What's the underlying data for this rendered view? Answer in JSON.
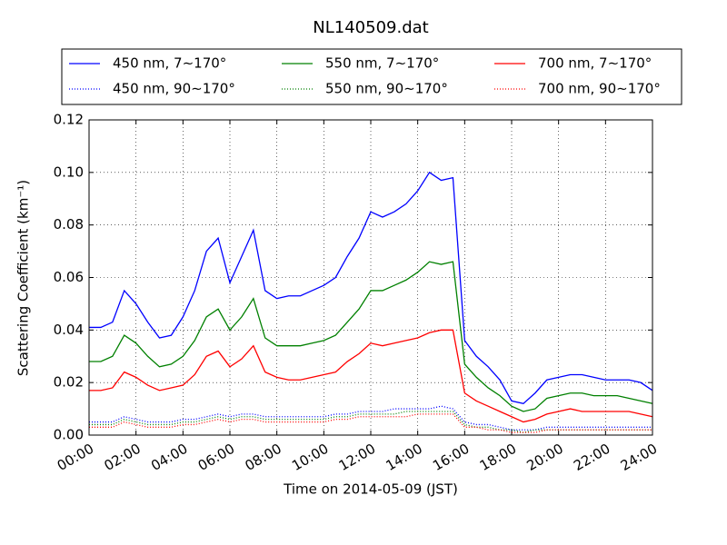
{
  "chart_data": {
    "type": "line",
    "title": "NL140509.dat",
    "x_label": "Time on 2014-05-09 (JST)",
    "y_label": "Scattering Coefficient (km⁻¹)",
    "x": [
      0,
      0.5,
      1,
      1.5,
      2,
      2.5,
      3,
      3.5,
      4,
      4.5,
      5,
      5.5,
      6,
      6.5,
      7,
      7.5,
      8,
      8.5,
      9,
      9.5,
      10,
      10.5,
      11,
      11.5,
      12,
      12.5,
      13,
      13.5,
      14,
      14.5,
      15,
      15.5,
      16,
      16.5,
      17,
      17.5,
      18,
      18.5,
      19,
      19.5,
      20,
      20.5,
      21,
      21.5,
      22,
      22.5,
      23,
      23.5,
      24
    ],
    "xlim": [
      0,
      24
    ],
    "xticks": [
      {
        "value": 0,
        "label": "00:00"
      },
      {
        "value": 2,
        "label": "02:00"
      },
      {
        "value": 4,
        "label": "04:00"
      },
      {
        "value": 6,
        "label": "06:00"
      },
      {
        "value": 8,
        "label": "08:00"
      },
      {
        "value": 10,
        "label": "10:00"
      },
      {
        "value": 12,
        "label": "12:00"
      },
      {
        "value": 14,
        "label": "14:00"
      },
      {
        "value": 16,
        "label": "16:00"
      },
      {
        "value": 18,
        "label": "18:00"
      },
      {
        "value": 20,
        "label": "20:00"
      },
      {
        "value": 22,
        "label": "22:00"
      },
      {
        "value": 24,
        "label": "24:00"
      }
    ],
    "ylim": [
      0,
      0.12
    ],
    "yticks": [
      {
        "value": 0,
        "label": "0.00"
      },
      0.02,
      0.04,
      0.06,
      0.08,
      {
        "value": 0.1,
        "label": "0.10"
      },
      0.12
    ],
    "grid": true,
    "legend": "top",
    "series": [
      {
        "name": "450 nm, 7∼170°",
        "color": "#0000ff",
        "style": "solid",
        "values": [
          0.041,
          0.041,
          0.043,
          0.055,
          0.05,
          0.043,
          0.037,
          0.038,
          0.045,
          0.055,
          0.07,
          0.075,
          0.058,
          0.068,
          0.078,
          0.055,
          0.052,
          0.053,
          0.053,
          0.055,
          0.057,
          0.06,
          0.068,
          0.075,
          0.085,
          0.083,
          0.085,
          0.088,
          0.093,
          0.1,
          0.097,
          0.098,
          0.036,
          0.03,
          0.026,
          0.021,
          0.013,
          0.012,
          0.016,
          0.021,
          0.022,
          0.023,
          0.023,
          0.022,
          0.021,
          0.021,
          0.021,
          0.02,
          0.017
        ]
      },
      {
        "name": "550 nm, 7∼170°",
        "color": "#008000",
        "style": "solid",
        "values": [
          0.028,
          0.028,
          0.03,
          0.038,
          0.035,
          0.03,
          0.026,
          0.027,
          0.03,
          0.036,
          0.045,
          0.048,
          0.04,
          0.045,
          0.052,
          0.037,
          0.034,
          0.034,
          0.034,
          0.035,
          0.036,
          0.038,
          0.043,
          0.048,
          0.055,
          0.055,
          0.057,
          0.059,
          0.062,
          0.066,
          0.065,
          0.066,
          0.027,
          0.022,
          0.018,
          0.015,
          0.011,
          0.009,
          0.01,
          0.014,
          0.015,
          0.016,
          0.016,
          0.015,
          0.015,
          0.015,
          0.014,
          0.013,
          0.012
        ]
      },
      {
        "name": "700 nm, 7∼170°",
        "color": "#ff0000",
        "style": "solid",
        "values": [
          0.017,
          0.017,
          0.018,
          0.024,
          0.022,
          0.019,
          0.017,
          0.018,
          0.019,
          0.023,
          0.03,
          0.032,
          0.026,
          0.029,
          0.034,
          0.024,
          0.022,
          0.021,
          0.021,
          0.022,
          0.023,
          0.024,
          0.028,
          0.031,
          0.035,
          0.034,
          0.035,
          0.036,
          0.037,
          0.039,
          0.04,
          0.04,
          0.016,
          0.013,
          0.011,
          0.009,
          0.007,
          0.005,
          0.006,
          0.008,
          0.009,
          0.01,
          0.009,
          0.009,
          0.009,
          0.009,
          0.009,
          0.008,
          0.007
        ]
      },
      {
        "name": "450 nm, 90∼170°",
        "color": "#0000ff",
        "style": "dotted",
        "values": [
          0.005,
          0.005,
          0.005,
          0.007,
          0.006,
          0.005,
          0.005,
          0.005,
          0.006,
          0.006,
          0.007,
          0.008,
          0.007,
          0.008,
          0.008,
          0.007,
          0.007,
          0.007,
          0.007,
          0.007,
          0.007,
          0.008,
          0.008,
          0.009,
          0.009,
          0.009,
          0.01,
          0.01,
          0.01,
          0.01,
          0.011,
          0.01,
          0.005,
          0.004,
          0.004,
          0.003,
          0.002,
          0.002,
          0.002,
          0.003,
          0.003,
          0.003,
          0.003,
          0.003,
          0.003,
          0.003,
          0.003,
          0.003,
          0.003
        ]
      },
      {
        "name": "550 nm, 90∼170°",
        "color": "#008000",
        "style": "dotted",
        "values": [
          0.004,
          0.004,
          0.004,
          0.006,
          0.005,
          0.004,
          0.004,
          0.004,
          0.005,
          0.005,
          0.006,
          0.007,
          0.006,
          0.007,
          0.007,
          0.006,
          0.006,
          0.006,
          0.006,
          0.006,
          0.006,
          0.007,
          0.007,
          0.008,
          0.008,
          0.008,
          0.008,
          0.009,
          0.009,
          0.009,
          0.009,
          0.009,
          0.004,
          0.003,
          0.003,
          0.002,
          0.002,
          0.001,
          0.002,
          0.002,
          0.002,
          0.002,
          0.002,
          0.002,
          0.002,
          0.002,
          0.002,
          0.002,
          0.002
        ]
      },
      {
        "name": "700 nm, 90∼170°",
        "color": "#ff0000",
        "style": "dotted",
        "values": [
          0.003,
          0.003,
          0.003,
          0.005,
          0.004,
          0.003,
          0.003,
          0.003,
          0.004,
          0.004,
          0.005,
          0.006,
          0.005,
          0.006,
          0.006,
          0.005,
          0.005,
          0.005,
          0.005,
          0.005,
          0.005,
          0.006,
          0.006,
          0.007,
          0.007,
          0.007,
          0.007,
          0.007,
          0.008,
          0.008,
          0.008,
          0.008,
          0.003,
          0.003,
          0.002,
          0.002,
          0.001,
          0.001,
          0.001,
          0.002,
          0.002,
          0.002,
          0.002,
          0.002,
          0.002,
          0.002,
          0.002,
          0.002,
          0.002
        ]
      }
    ]
  }
}
